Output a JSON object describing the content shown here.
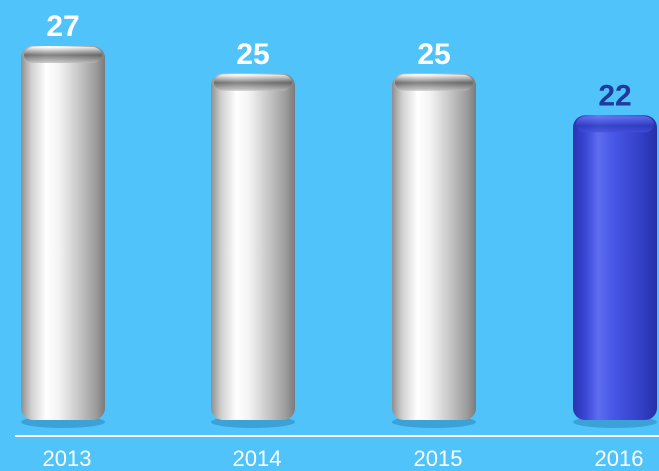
{
  "chart_data": {
    "type": "bar",
    "categories": [
      "2013",
      "2014",
      "2015",
      "2016"
    ],
    "values": [
      27,
      25,
      25,
      22
    ],
    "value_labels": [
      "27",
      "25",
      "25",
      "22"
    ],
    "title": "",
    "xlabel": "",
    "ylabel": "",
    "grid": false,
    "legend": "none",
    "colors": {
      "background": "#4fc3fa",
      "bar_default": "#c9c9c9",
      "bar_highlight": "#3a47d6",
      "label_default": "#ffffff",
      "label_highlight": "#1f3a9a",
      "axis": "#ffffff"
    },
    "highlight_category": "2016"
  }
}
